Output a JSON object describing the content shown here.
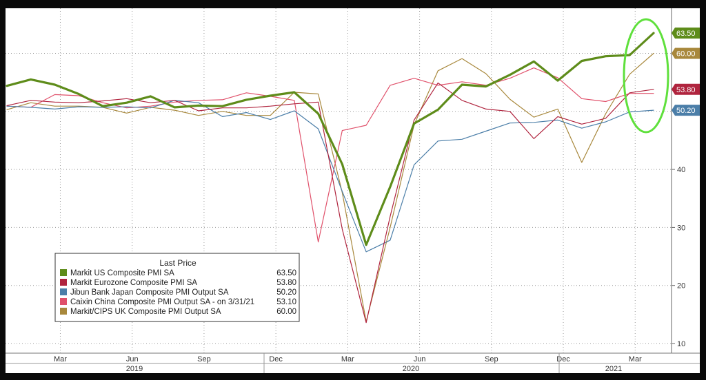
{
  "chart_data": {
    "type": "line",
    "title": "",
    "xlabel": "",
    "ylabel": "",
    "ylim": [
      9,
      67
    ],
    "y_ticks": [
      10,
      20,
      30,
      40
    ],
    "grid": true,
    "x_month_labels": [
      "Mar",
      "Jun",
      "Sep",
      "Dec",
      "Mar",
      "Jun",
      "Sep",
      "Dec",
      "Mar"
    ],
    "x_year_labels": [
      "2019",
      "2020",
      "2021"
    ],
    "x": [
      "2019-01",
      "2019-02",
      "2019-03",
      "2019-04",
      "2019-05",
      "2019-06",
      "2019-07",
      "2019-08",
      "2019-09",
      "2019-10",
      "2019-11",
      "2019-12",
      "2020-01",
      "2020-02",
      "2020-03",
      "2020-04",
      "2020-05",
      "2020-06",
      "2020-07",
      "2020-08",
      "2020-09",
      "2020-10",
      "2020-11",
      "2020-12",
      "2021-01",
      "2021-02",
      "2021-03",
      "2021-04"
    ],
    "legend": {
      "title": "Last Price",
      "placement": "bottom-left"
    },
    "series": [
      {
        "name": "Markit US Composite PMI SA",
        "last": "63.50",
        "color": "#5e8c1a",
        "width": 3.2,
        "values": [
          54.4,
          55.5,
          54.6,
          53.0,
          50.9,
          51.5,
          52.6,
          50.7,
          51.0,
          50.9,
          52.0,
          52.7,
          53.3,
          49.6,
          40.9,
          27.0,
          37.0,
          47.9,
          50.3,
          54.6,
          54.3,
          56.3,
          58.6,
          55.3,
          58.7,
          59.5,
          59.7,
          63.5
        ]
      },
      {
        "name": "Markit Eurozone Composite PMI SA",
        "last": "53.80",
        "color": "#b0243e",
        "width": 1.2,
        "values": [
          51.0,
          51.9,
          51.6,
          51.5,
          51.8,
          52.2,
          51.5,
          51.9,
          50.1,
          50.6,
          50.6,
          50.9,
          51.3,
          51.6,
          29.7,
          13.6,
          31.9,
          48.5,
          54.9,
          51.9,
          50.4,
          50.0,
          45.3,
          49.1,
          47.8,
          48.8,
          53.2,
          53.8
        ]
      },
      {
        "name": "Jibun Bank Japan Composite PMI Output SA",
        "last": "50.20",
        "color": "#4b7ea8",
        "width": 1.2,
        "values": [
          50.9,
          50.7,
          50.4,
          50.8,
          50.7,
          50.8,
          50.6,
          51.9,
          51.5,
          49.1,
          49.8,
          48.6,
          50.1,
          47.0,
          36.2,
          25.8,
          27.8,
          40.8,
          44.9,
          45.2,
          46.6,
          48.0,
          48.1,
          48.5,
          47.1,
          48.2,
          49.9,
          50.2
        ]
      },
      {
        "name": "Caixin China Composite PMI Output SA -  on 3/31/21",
        "last": "53.10",
        "color": "#e0506a",
        "width": 1.2,
        "values": [
          50.9,
          50.7,
          52.9,
          52.7,
          51.5,
          50.6,
          50.9,
          51.6,
          51.9,
          52.0,
          53.2,
          52.6,
          51.9,
          27.5,
          46.7,
          47.6,
          54.5,
          55.7,
          54.5,
          55.1,
          54.5,
          55.7,
          57.5,
          55.8,
          52.2,
          51.7,
          53.1,
          53.1
        ]
      },
      {
        "name": "Markit/CIPS UK Composite PMI Output SA",
        "last": "60.00",
        "color": "#a8883c",
        "width": 1.2,
        "values": [
          50.3,
          51.5,
          50.9,
          50.9,
          50.7,
          49.7,
          50.7,
          50.2,
          49.3,
          50.0,
          49.3,
          49.3,
          53.3,
          53.0,
          36.0,
          13.8,
          30.0,
          47.7,
          57.0,
          59.1,
          56.5,
          52.1,
          49.0,
          50.4,
          41.2,
          49.6,
          56.4,
          60.0
        ]
      }
    ]
  }
}
